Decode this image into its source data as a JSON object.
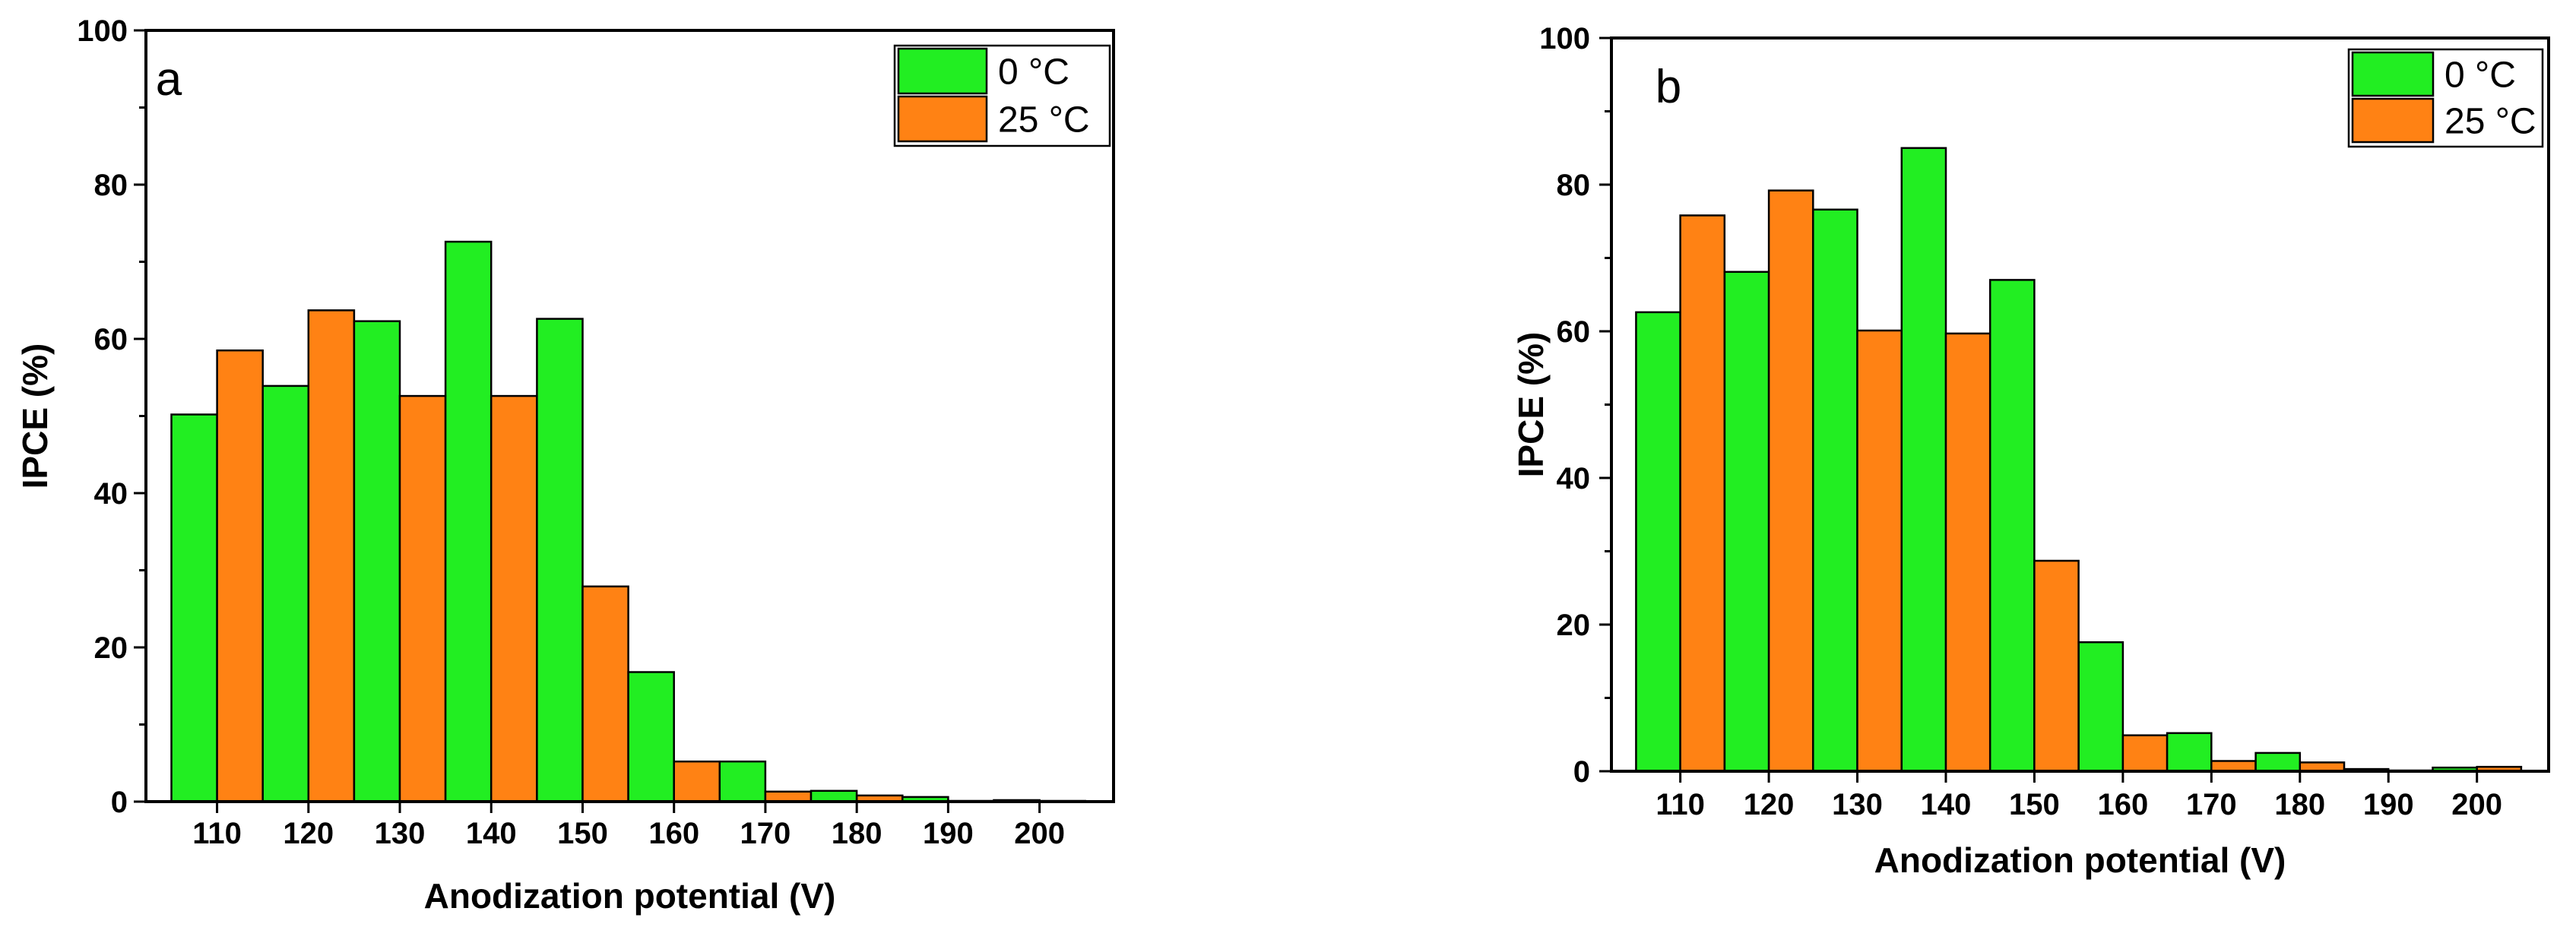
{
  "chart_data": [
    {
      "type": "bar",
      "panel_label": "a",
      "categories": [
        "110",
        "120",
        "130",
        "140",
        "150",
        "160",
        "170",
        "180",
        "190",
        "200"
      ],
      "series": [
        {
          "name": "0 °C",
          "color": "#22ee22",
          "values": [
            50.2,
            53.9,
            62.3,
            72.6,
            62.6,
            16.8,
            5.2,
            1.4,
            0.6,
            0.2
          ]
        },
        {
          "name": "25 °C",
          "color": "#ff8214",
          "values": [
            58.5,
            63.7,
            52.6,
            52.6,
            27.9,
            5.2,
            1.3,
            0.8,
            0.1,
            0.1
          ]
        }
      ],
      "title": "",
      "xlabel": "Anodization potential (V)",
      "ylabel": "IPCE (%)",
      "ylim": [
        0,
        100
      ],
      "yticks": [
        "0",
        "20",
        "40",
        "60",
        "80",
        "100"
      ],
      "legend": "top-right",
      "grid": false
    },
    {
      "type": "bar",
      "panel_label": "b",
      "categories": [
        "110",
        "120",
        "130",
        "140",
        "150",
        "160",
        "170",
        "180",
        "190",
        "200"
      ],
      "series": [
        {
          "name": "0 °C",
          "color": "#22ee22",
          "values": [
            62.6,
            68.1,
            76.6,
            85.0,
            67.0,
            17.6,
            5.2,
            2.5,
            0.3,
            0.5
          ]
        },
        {
          "name": "25 °C",
          "color": "#ff8214",
          "values": [
            75.8,
            79.2,
            60.1,
            59.7,
            28.7,
            4.9,
            1.4,
            1.2,
            0.1,
            0.6
          ]
        }
      ],
      "title": "",
      "xlabel": "Anodization potential (V)",
      "ylabel": "IPCE (%)",
      "ylim": [
        0,
        100
      ],
      "yticks": [
        "0",
        "20",
        "40",
        "60",
        "80",
        "100"
      ],
      "legend": "top-right",
      "grid": false
    }
  ]
}
